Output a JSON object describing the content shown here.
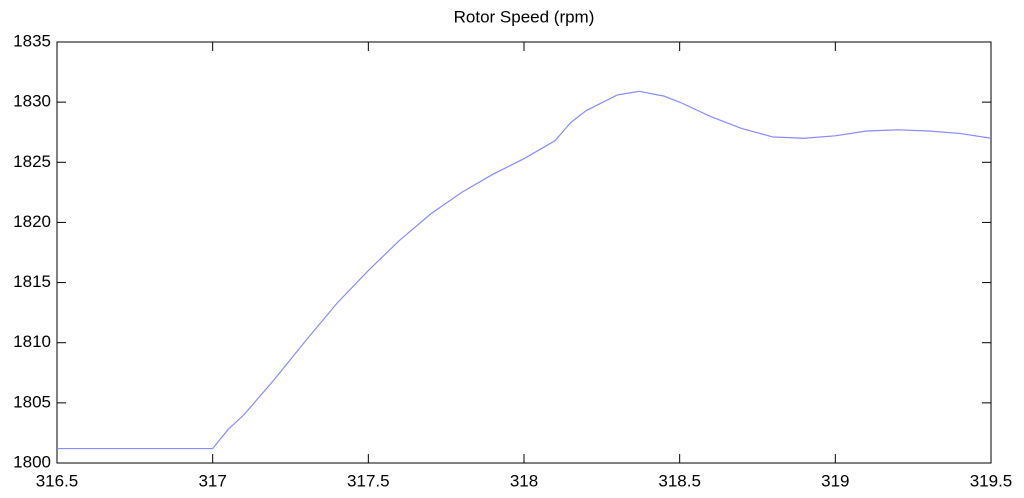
{
  "chart_data": {
    "type": "line",
    "title": "Rotor Speed (rpm)",
    "x": [
      316.5,
      316.6,
      316.7,
      316.8,
      316.9,
      317.0,
      317.05,
      317.1,
      317.2,
      317.3,
      317.4,
      317.5,
      317.6,
      317.7,
      317.8,
      317.9,
      318.0,
      318.1,
      318.15,
      318.2,
      318.3,
      318.37,
      318.45,
      318.5,
      318.6,
      318.7,
      318.8,
      318.9,
      319.0,
      319.1,
      319.2,
      319.3,
      319.4,
      319.5
    ],
    "series": [
      {
        "name": "Rotor Speed",
        "color": "#8a8aff",
        "values": [
          1801.2,
          1801.2,
          1801.2,
          1801.2,
          1801.2,
          1801.2,
          1802.8,
          1804.0,
          1807.0,
          1810.2,
          1813.3,
          1816.0,
          1818.5,
          1820.7,
          1822.5,
          1824.0,
          1825.3,
          1826.8,
          1828.3,
          1829.3,
          1830.6,
          1830.9,
          1830.5,
          1830.0,
          1828.8,
          1827.8,
          1827.1,
          1827.0,
          1827.2,
          1827.6,
          1827.7,
          1827.6,
          1827.4,
          1827.0
        ]
      }
    ],
    "xlim": [
      316.5,
      319.5
    ],
    "xticks": [
      316.5,
      317,
      317.5,
      318,
      318.5,
      319,
      319.5
    ],
    "ylim": [
      1800,
      1835
    ],
    "yticks": [
      1800,
      1805,
      1810,
      1815,
      1820,
      1825,
      1830,
      1835
    ],
    "grid": false
  }
}
